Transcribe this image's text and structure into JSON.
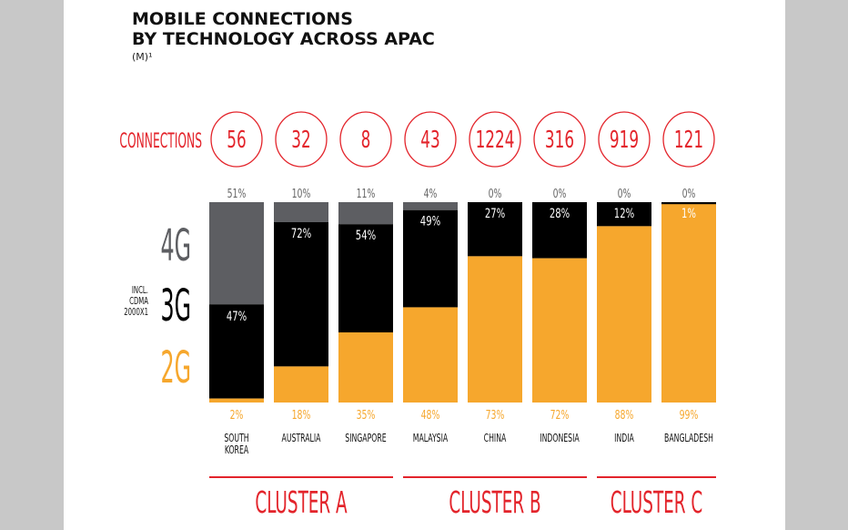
{
  "title_line1": "MOBILE CONNECTIONS",
  "title_line2": "BY TECHNOLOGY ACROSS APAC",
  "unit": "(M)¹",
  "connections_label": "CONNECTIONS",
  "legend": {
    "g4": "4G",
    "g3": "3G",
    "g3_note": [
      "INCL.",
      "CDMA",
      "2000X1"
    ],
    "g2": "2G"
  },
  "colors": {
    "g4": "#5d5e62",
    "g3": "#000000",
    "g2": "#f6a72d",
    "accent": "#e3242b",
    "label": "#666666"
  },
  "chart_data": {
    "type": "bar",
    "stacked": true,
    "categories": [
      [
        "SOUTH",
        "KOREA"
      ],
      [
        "AUSTRALIA"
      ],
      [
        "SINGAPORE"
      ],
      [
        "MALAYSIA"
      ],
      [
        "CHINA"
      ],
      [
        "INDONESIA"
      ],
      [
        "INDIA"
      ],
      [
        "BANGLADESH"
      ]
    ],
    "connections": [
      "56",
      "32",
      "8",
      "43",
      "1224",
      "316",
      "919",
      "121"
    ],
    "series": [
      {
        "name": "2G",
        "key": "g2",
        "values": [
          2,
          18,
          35,
          48,
          73,
          72,
          88,
          99
        ],
        "labels": [
          "2%",
          "18%",
          "35%",
          "48%",
          "73%",
          "72%",
          "88%",
          "99%"
        ]
      },
      {
        "name": "3G",
        "key": "g3",
        "values": [
          47,
          72,
          54,
          49,
          27,
          28,
          12,
          1
        ],
        "labels": [
          "47%",
          "72%",
          "54%",
          "49%",
          "27%",
          "28%",
          "12%",
          "1%"
        ]
      },
      {
        "name": "4G",
        "key": "g4",
        "values": [
          51,
          10,
          11,
          4,
          0,
          0,
          0,
          0
        ],
        "labels": [
          "51%",
          "10%",
          "11%",
          "4%",
          "0%",
          "0%",
          "0%",
          "0%"
        ]
      }
    ],
    "clusters": [
      {
        "label": "CLUSTER A",
        "from": 0,
        "to": 2
      },
      {
        "label": "CLUSTER B",
        "from": 3,
        "to": 5
      },
      {
        "label": "CLUSTER C",
        "from": 6,
        "to": 7
      }
    ]
  }
}
